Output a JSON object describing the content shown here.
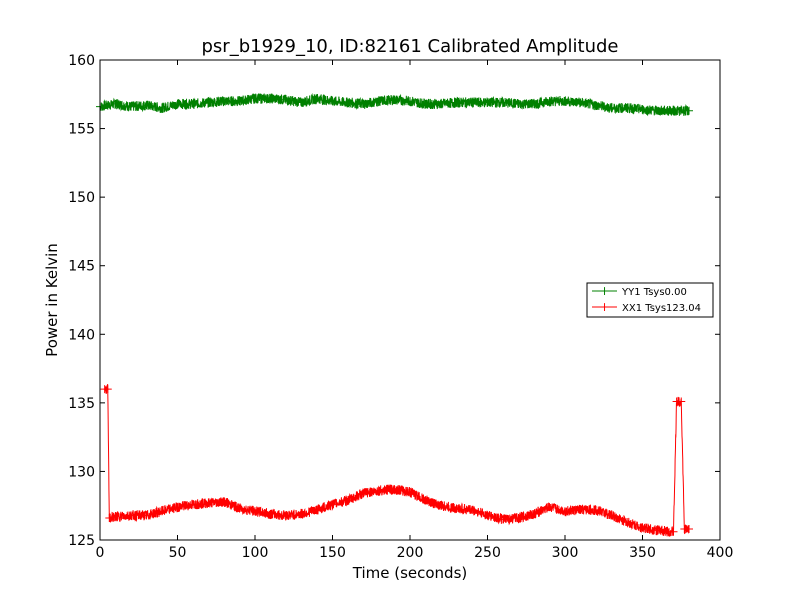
{
  "chart_data": {
    "type": "line",
    "title": "psr_b1929_10, ID:82161 Calibrated Amplitude",
    "xlabel": "Time (seconds)",
    "ylabel": "Power in Kelvin",
    "xlim": [
      0,
      400
    ],
    "ylim": [
      125,
      160
    ],
    "xticks": [
      0,
      50,
      100,
      150,
      200,
      250,
      300,
      350,
      400
    ],
    "yticks": [
      125,
      130,
      135,
      140,
      145,
      150,
      155,
      160
    ],
    "legend_position": "center-right",
    "series": [
      {
        "name": "YY1 Tsys0.00",
        "color": "#008000",
        "marker": "+",
        "x": [
          0,
          10,
          20,
          30,
          40,
          50,
          60,
          70,
          80,
          90,
          100,
          110,
          120,
          130,
          140,
          150,
          160,
          170,
          180,
          190,
          200,
          210,
          220,
          230,
          240,
          250,
          260,
          270,
          280,
          290,
          300,
          310,
          320,
          330,
          340,
          350,
          360,
          370,
          380
        ],
        "values": [
          156.6,
          156.8,
          156.6,
          156.7,
          156.5,
          156.8,
          156.8,
          156.9,
          157.0,
          157.0,
          157.2,
          157.2,
          157.1,
          156.9,
          157.2,
          157.0,
          156.9,
          156.8,
          157.0,
          157.1,
          157.0,
          156.8,
          156.8,
          156.9,
          156.9,
          156.9,
          156.9,
          156.8,
          156.8,
          157.0,
          157.0,
          156.9,
          156.7,
          156.5,
          156.5,
          156.4,
          156.3,
          156.3,
          156.3
        ]
      },
      {
        "name": "XX1 Tsys123.04",
        "color": "#ff0000",
        "marker": "+",
        "x": [
          3,
          5,
          6,
          10,
          20,
          30,
          40,
          50,
          60,
          70,
          80,
          90,
          100,
          110,
          120,
          130,
          140,
          150,
          160,
          170,
          180,
          190,
          200,
          210,
          220,
          230,
          240,
          250,
          260,
          270,
          280,
          290,
          300,
          310,
          320,
          330,
          340,
          350,
          360,
          370,
          372,
          373,
          375,
          377,
          378,
          380
        ],
        "values": [
          136.0,
          136.0,
          126.6,
          126.7,
          126.8,
          126.8,
          127.1,
          127.4,
          127.6,
          127.7,
          127.8,
          127.3,
          127.1,
          126.9,
          126.8,
          126.9,
          127.2,
          127.6,
          127.9,
          128.4,
          128.6,
          128.7,
          128.5,
          127.9,
          127.5,
          127.3,
          127.2,
          126.8,
          126.5,
          126.6,
          126.9,
          127.4,
          127.1,
          127.2,
          127.2,
          126.8,
          126.3,
          125.9,
          125.7,
          125.6,
          135.1,
          135.1,
          135.1,
          125.8,
          125.8,
          125.8
        ]
      }
    ]
  }
}
